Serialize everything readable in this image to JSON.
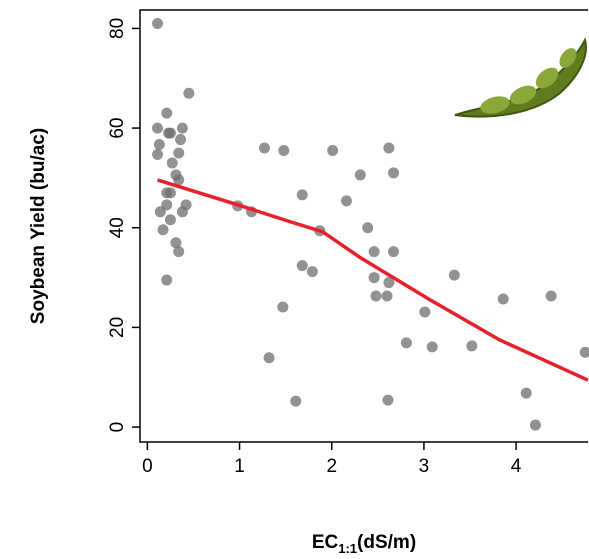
{
  "chart_data": {
    "type": "scatter",
    "y_label": "Soybean Yield (bu/ac)",
    "x_label": {
      "main": "EC",
      "sub": "1:1",
      "rest": "(dS/m)"
    },
    "xlim": [
      -0.08,
      4.78
    ],
    "ylim": [
      -3,
      83.7
    ],
    "xticks": [
      0,
      1,
      2,
      3,
      4
    ],
    "yticks": [
      0,
      20,
      40,
      60,
      80
    ],
    "series": [
      {
        "type": "scatter",
        "color": "#6e6e6e",
        "x": [
          0.11,
          0.11,
          0.13,
          0.11,
          0.21,
          0.23,
          0.25,
          0.36,
          0.38,
          0.45,
          0.27,
          0.34,
          0.31,
          0.34,
          0.25,
          0.21,
          0.42,
          0.38,
          0.14,
          0.21,
          0.25,
          0.17,
          0.31,
          0.34,
          0.21,
          0.98,
          1.13,
          1.27,
          1.48,
          1.68,
          1.68,
          1.79,
          1.47,
          1.32,
          1.61,
          1.87,
          2.01,
          2.16,
          2.31,
          2.39,
          2.46,
          2.46,
          2.48,
          2.6,
          2.62,
          2.62,
          2.67,
          2.67,
          2.61,
          2.81,
          3.01,
          3.09,
          3.33,
          3.52,
          3.86,
          4.11,
          4.21,
          4.38,
          4.75
        ],
        "values": [
          81,
          60,
          56.7,
          54.7,
          63,
          59,
          59,
          57.7,
          60,
          67,
          53,
          55,
          50.6,
          49.6,
          47,
          47,
          44.6,
          43.2,
          43.2,
          44.6,
          41.6,
          39.6,
          37,
          35.2,
          29.5,
          44.4,
          43.2,
          56,
          55.5,
          46.6,
          32.4,
          31.2,
          24.1,
          13.9,
          5.2,
          39.4,
          55.5,
          45.4,
          50.6,
          40,
          35.2,
          30,
          26.3,
          26.3,
          29,
          56,
          51,
          35.2,
          5.4,
          16.9,
          23.1,
          16.1,
          30.5,
          16.3,
          25.7,
          6.8,
          0.4,
          26.3,
          15
        ]
      },
      {
        "type": "line",
        "color": "#e8202a",
        "x": [
          0.11,
          0.98,
          1.55,
          1.9,
          2.31,
          3.07,
          3.82,
          4.78
        ],
        "values": [
          49.6,
          44.6,
          41.2,
          39.2,
          34,
          25.5,
          17.5,
          9.4
        ]
      }
    ]
  }
}
